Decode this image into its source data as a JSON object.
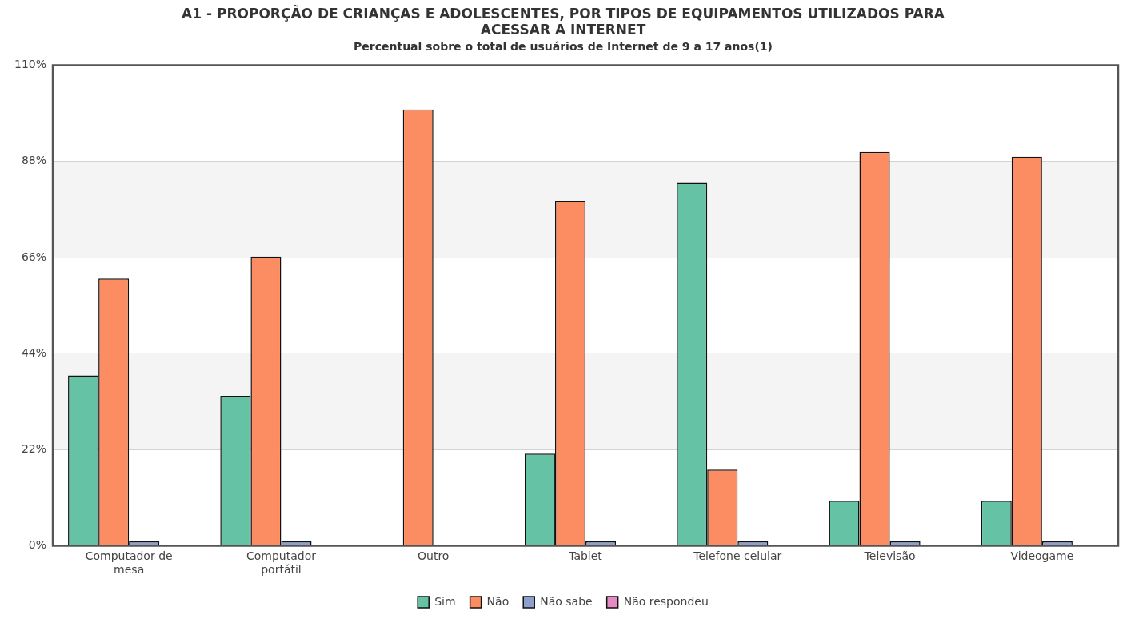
{
  "chart_data": {
    "type": "bar",
    "title": [
      "A1 - PROPORÇÃO DE CRIANÇAS E ADOLESCENTES, POR TIPOS DE EQUIPAMENTOS UTILIZADOS PARA",
      "ACESSAR A INTERNET"
    ],
    "subtitle": "Percentual sobre o total de usuários de Internet de 9 a 17 anos(1)",
    "categories": [
      [
        "Computador de",
        "mesa"
      ],
      [
        "Computador",
        "portátil"
      ],
      "Outro",
      "Tablet",
      "Telefone celular",
      "Televisão",
      "Videogame"
    ],
    "series": [
      {
        "name": "Sim",
        "color": "#66c2a5",
        "values": [
          39,
          34.3,
          null,
          21.1,
          83.1,
          10.3,
          10.3
        ]
      },
      {
        "name": "Não",
        "color": "#fc8d62",
        "values": [
          61.2,
          66.2,
          99.9,
          79,
          17.4,
          90.2,
          89.1
        ]
      },
      {
        "name": "Não sabe",
        "color": "#8da0cb",
        "values": [
          1,
          1,
          null,
          1,
          1,
          1,
          1
        ]
      },
      {
        "name": "Não respondeu",
        "color": "#e78ac3",
        "values": [
          null,
          null,
          null,
          null,
          null,
          null,
          null
        ]
      }
    ],
    "ylim": [
      0,
      110
    ],
    "yticks": [
      {
        "value": 0,
        "label": "0%"
      },
      {
        "value": 22,
        "label": "22%"
      },
      {
        "value": 44,
        "label": "44%"
      },
      {
        "value": 66,
        "label": "66%"
      },
      {
        "value": 88,
        "label": "88%"
      },
      {
        "value": 110,
        "label": "110%"
      }
    ],
    "grid": "y",
    "legend": "bottom"
  }
}
